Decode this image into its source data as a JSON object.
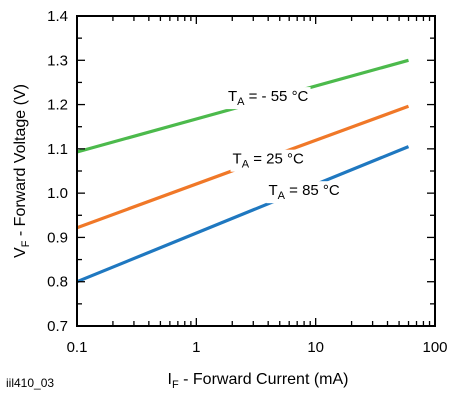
{
  "figure_id": "iil410_03",
  "chart_data": {
    "type": "line",
    "xscale": "log",
    "xlim": [
      0.1,
      100
    ],
    "ylim": [
      0.7,
      1.4
    ],
    "xticks": [
      "0.1",
      "1",
      "10",
      "100"
    ],
    "yticks": [
      "0.7",
      "0.8",
      "0.9",
      "1.0",
      "1.1",
      "1.2",
      "1.3",
      "1.4"
    ],
    "xlabel": {
      "main": "I",
      "sub": "F",
      "rest": " - Forward Current (mA)"
    },
    "ylabel": {
      "main": "V",
      "sub": "F",
      "rest": " - Forward Voltage (V)"
    },
    "grid": false,
    "series": [
      {
        "name_main": "T",
        "name_sub": "A",
        "name_rest": " = - 55 °C",
        "color": "#4cba4c",
        "x": [
          0.1,
          60
        ],
        "y": [
          1.093,
          1.3
        ]
      },
      {
        "name_main": "T",
        "name_sub": "A",
        "name_rest": " = 25 °C",
        "color": "#f07828",
        "x": [
          0.1,
          60
        ],
        "y": [
          0.922,
          1.196
        ]
      },
      {
        "name_main": "T",
        "name_sub": "A",
        "name_rest": " = 85 °C",
        "color": "#1f78c0",
        "x": [
          0.1,
          60
        ],
        "y": [
          0.8,
          1.105
        ]
      }
    ]
  }
}
